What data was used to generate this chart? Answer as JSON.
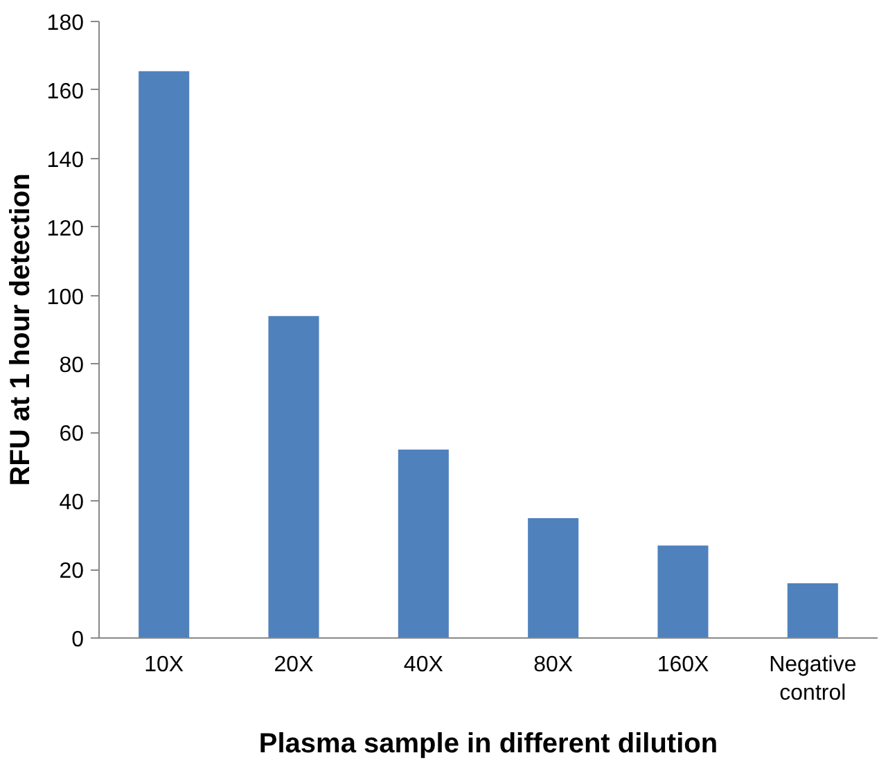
{
  "chart_data": {
    "type": "bar",
    "xlabel": "Plasma sample in different dilution",
    "ylabel": "RFU at 1 hour detection",
    "categories": [
      "10X",
      "20X",
      "40X",
      "80X",
      "160X",
      "Negative control"
    ],
    "values": [
      165.5,
      94,
      55,
      35,
      27,
      16
    ],
    "color": "#4f81bd",
    "ylim": [
      0,
      180
    ],
    "yticks": [
      0,
      20,
      40,
      60,
      80,
      100,
      120,
      140,
      160,
      180
    ],
    "grid": false
  }
}
